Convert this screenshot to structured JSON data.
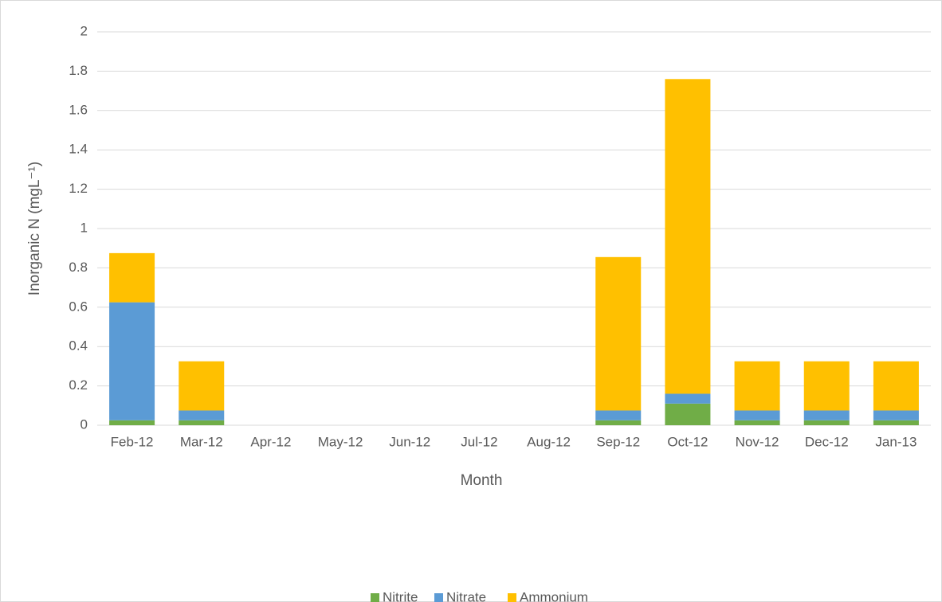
{
  "chart_data": {
    "type": "stacked_bar",
    "x_label": "Month",
    "y_label": "Inorganic N (mgL⁻¹)",
    "categories": [
      "Feb-12",
      "Mar-12",
      "Apr-12",
      "May-12",
      "Jun-12",
      "Jul-12",
      "Aug-12",
      "Sep-12",
      "Oct-12",
      "Nov-12",
      "Dec-12",
      "Jan-13"
    ],
    "series": [
      {
        "name": "Nitrite",
        "color": "#70ad47",
        "values": [
          0.025,
          0.025,
          0,
          0,
          0,
          0,
          0,
          0.025,
          0.11,
          0.025,
          0.025,
          0.025
        ]
      },
      {
        "name": "Nitrate",
        "color": "#5b9bd5",
        "values": [
          0.6,
          0.05,
          0,
          0,
          0,
          0,
          0,
          0.05,
          0.05,
          0.05,
          0.05,
          0.05
        ]
      },
      {
        "name": "Ammonium",
        "color": "#ffc000",
        "values": [
          0.25,
          0.25,
          0,
          0,
          0,
          0,
          0,
          0.78,
          1.6,
          0.25,
          0.25,
          0.25
        ]
      }
    ],
    "ylim": [
      0,
      2
    ],
    "yticks": [
      0,
      0.2,
      0.4,
      0.6,
      0.8,
      1,
      1.2,
      1.4,
      1.6,
      1.8,
      2
    ],
    "grid": true,
    "legend": "bottom"
  }
}
